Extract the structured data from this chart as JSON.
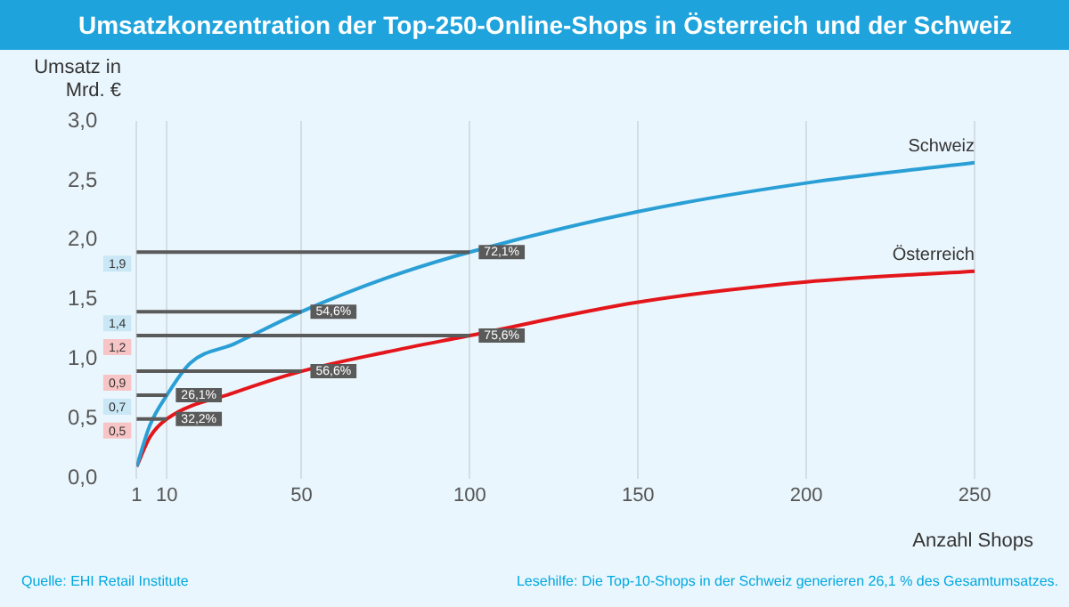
{
  "chart_data": {
    "type": "line",
    "title": "Umsatzkonzentration der Top-250-Online-Shops in Österreich und der Schweiz",
    "xlabel": "Anzahl Shops",
    "ylabel": "Umsatz in Mrd. €",
    "x": [
      1,
      5,
      10,
      17,
      30,
      50,
      75,
      100,
      150,
      200,
      250
    ],
    "series": [
      {
        "name": "Schweiz",
        "color": "#2a9fd6",
        "values": [
          0.1,
          0.45,
          0.7,
          0.97,
          1.13,
          1.4,
          1.68,
          1.9,
          2.24,
          2.48,
          2.65
        ]
      },
      {
        "name": "Österreich",
        "color": "#e3161b",
        "x": [
          1,
          5,
          10,
          30,
          50,
          75,
          100,
          150,
          200,
          250
        ],
        "values": [
          0.1,
          0.35,
          0.5,
          0.72,
          0.9,
          1.06,
          1.2,
          1.48,
          1.65,
          1.74
        ]
      }
    ],
    "xlim": [
      1,
      250
    ],
    "xticks": [
      1,
      10,
      50,
      100,
      150,
      200,
      250
    ],
    "ylim": [
      0,
      3
    ],
    "yticks": [
      {
        "value": 0,
        "label": "0,0"
      },
      {
        "value": 0.5,
        "label": "0,5"
      },
      {
        "value": 1,
        "label": "1,0"
      },
      {
        "value": 1.5,
        "label": "1,5"
      },
      {
        "value": 2,
        "label": "2,0"
      },
      {
        "value": 2.5,
        "label": "2,5"
      },
      {
        "value": 3,
        "label": "3,0"
      }
    ],
    "grid": "x",
    "ref_lines": [
      {
        "axis": "y",
        "value": 1.9,
        "label": "1,9",
        "color": "#5a5a5a"
      },
      {
        "axis": "y",
        "value": 1.4,
        "label": "1,4",
        "color": "#5a5a5a"
      },
      {
        "axis": "y",
        "value": 1.2,
        "label": "1,2",
        "color": "#5a5a5a"
      },
      {
        "axis": "y",
        "value": 0.9,
        "label": "0,9",
        "color": "#5a5a5a"
      },
      {
        "axis": "y",
        "value": 0.7,
        "label": "0,7",
        "color": "#5a5a5a"
      },
      {
        "axis": "y",
        "value": 0.5,
        "label": "0,5",
        "color": "#5a5a5a"
      }
    ],
    "annotations": [
      {
        "text": "72,1%",
        "x": 100,
        "y": 1.9
      },
      {
        "text": "54,6%",
        "x": 50,
        "y": 1.4
      },
      {
        "text": "75,6%",
        "x": 100,
        "y": 1.2
      },
      {
        "text": "56,6%",
        "x": 50,
        "y": 0.9
      },
      {
        "text": "26,1%",
        "x": 10,
        "y": 0.7
      },
      {
        "text": "32,2%",
        "x": 10,
        "y": 0.5
      },
      "Quelle: EHI Retail Institute",
      "Lesehilfe: Die Top-10-Shops in der Schweiz generieren 26,1 % des Gesamtumsatzes."
    ]
  }
}
